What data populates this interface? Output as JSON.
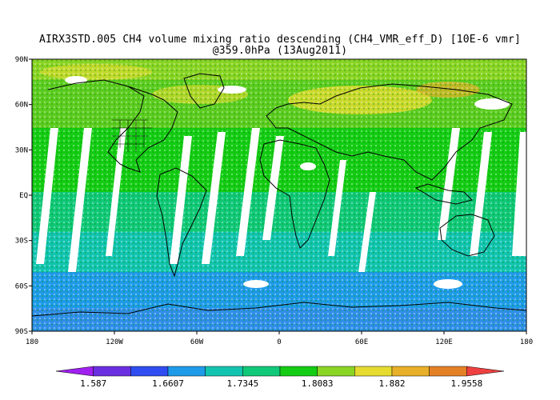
{
  "title_line1": "AIRX3STD.005 CH4 volume mixing ratio descending (CH4_VMR_eff_D) [10E-6 vmr]",
  "title_line2": "@359.0hPa (13Aug2011)",
  "lat_labels": [
    "90N",
    "60N",
    "30N",
    "EQ",
    "30S",
    "60S",
    "90S"
  ],
  "lon_labels": [
    "180",
    "120W",
    "60W",
    "0",
    "60E",
    "120E",
    "180"
  ],
  "colorbar": {
    "tick_labels": [
      "1.587",
      "1.6607",
      "1.7345",
      "1.8083",
      "1.882",
      "1.9558"
    ],
    "colors": [
      "#a020f0",
      "#6a2fe0",
      "#2f4df0",
      "#1e9be8",
      "#12c4b0",
      "#10c878",
      "#14cc14",
      "#8ad424",
      "#e6dc30",
      "#e8b028",
      "#e48026",
      "#ee4040"
    ]
  }
}
